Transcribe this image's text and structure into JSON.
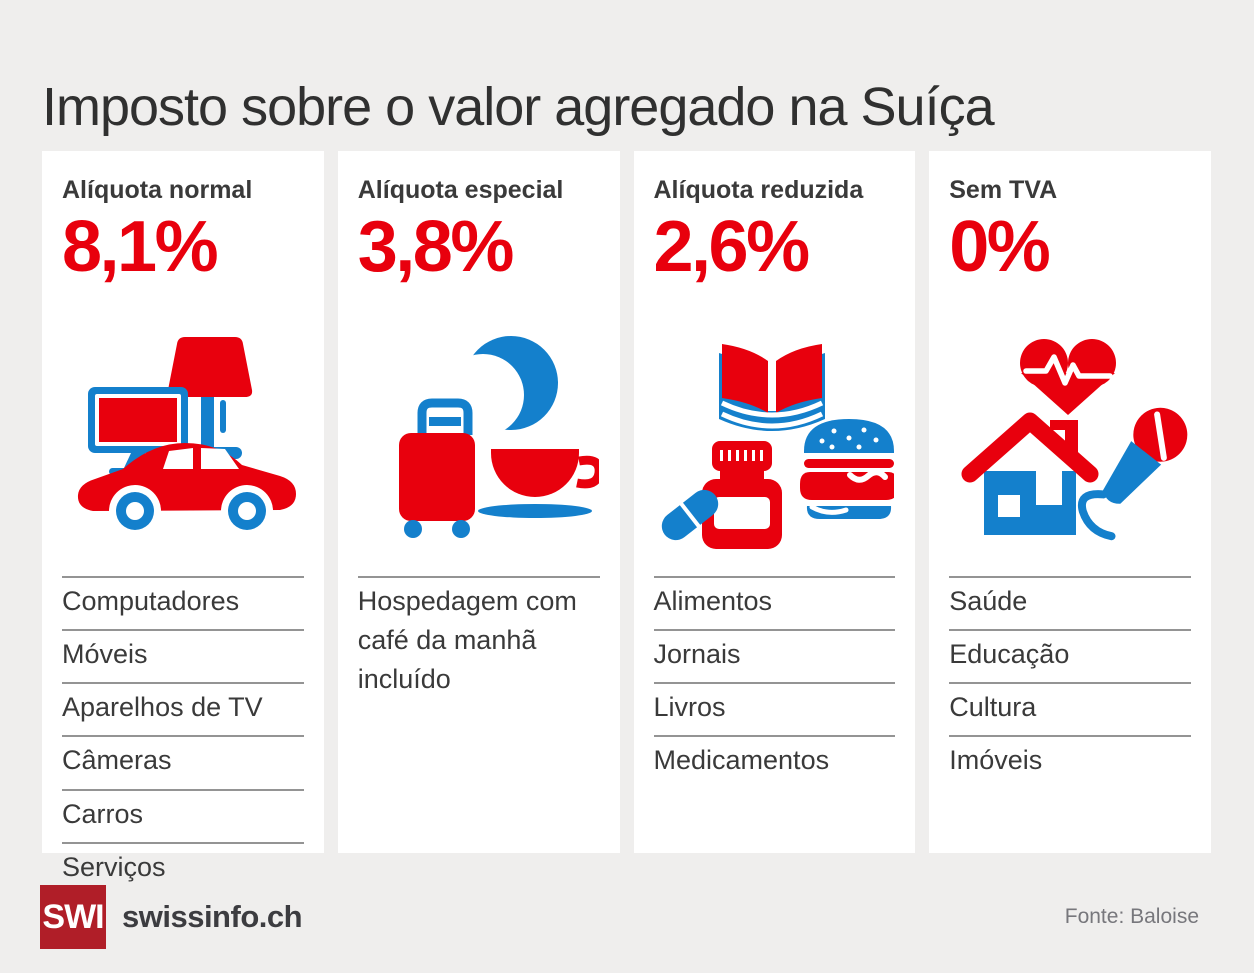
{
  "title": "Imposto sobre o valor agregado na Suíça",
  "colors": {
    "background": "#efeeed",
    "card": "#ffffff",
    "accent_red": "#e8000d",
    "accent_blue": "#1480cc",
    "logo_red": "#b01e28",
    "text_dark": "#303030",
    "text_body": "#3a3a3a",
    "line_gray": "#949494",
    "source_gray": "#77777c"
  },
  "cards": [
    {
      "label": "Alíquota normal",
      "rate": "8,1%",
      "icons": [
        "tv-icon",
        "lamp-icon",
        "car-icon"
      ],
      "items": [
        "Computadores",
        "Móveis",
        "Aparelhos de TV",
        "Câmeras",
        "Carros",
        "Serviços"
      ]
    },
    {
      "label": "Alíquota especial",
      "rate": "3,8%",
      "icons": [
        "moon-icon",
        "suitcase-icon",
        "coffee-cup-icon"
      ],
      "items": [
        "Hospedagem com café da manhã incluído"
      ]
    },
    {
      "label": "Alíquota reduzida",
      "rate": "2,6%",
      "icons": [
        "open-book-icon",
        "pill-icon",
        "medicine-bottle-icon",
        "burger-icon"
      ],
      "items": [
        "Alimentos",
        "Jornais",
        "Livros",
        "Medicamentos"
      ]
    },
    {
      "label": "Sem TVA",
      "rate": "0%",
      "icons": [
        "heart-pulse-icon",
        "house-icon",
        "microphone-icon"
      ],
      "items": [
        "Saúde",
        "Educação",
        "Cultura",
        "Imóveis"
      ]
    }
  ],
  "footer": {
    "logo_text": "SWI",
    "brand": "swissinfo.ch",
    "source": "Fonte: Baloise"
  }
}
